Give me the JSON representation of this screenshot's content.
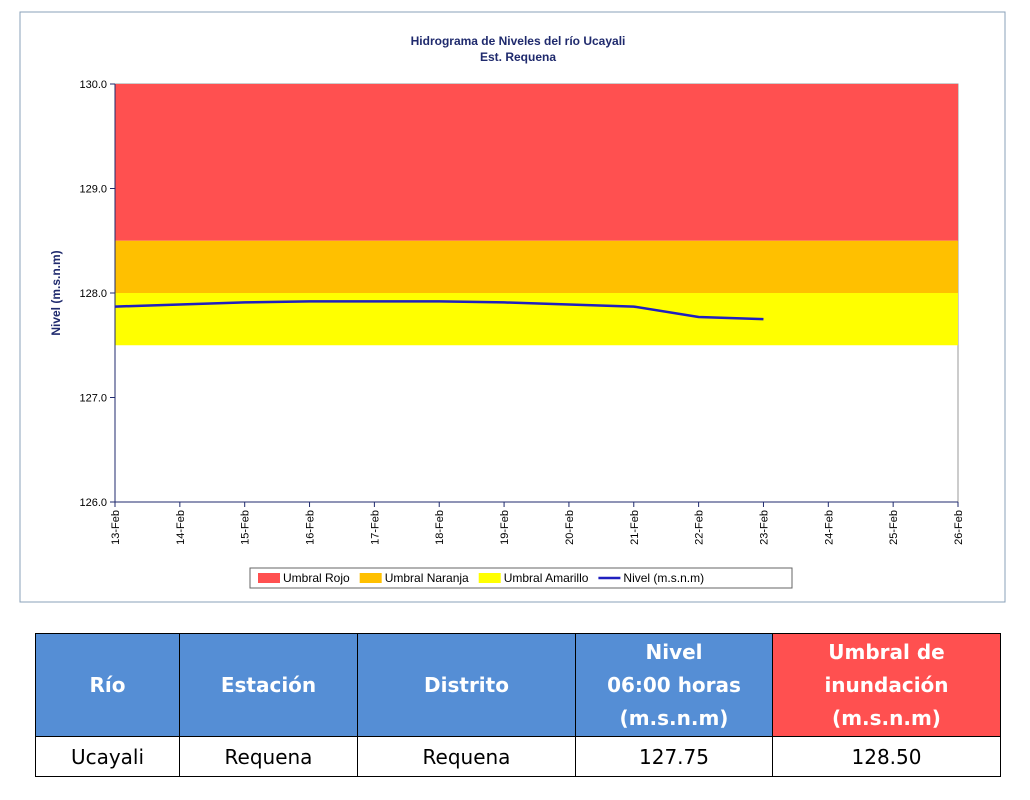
{
  "chart_data": {
    "type": "line",
    "title": "Hidrograma de Niveles del río Ucayali",
    "subtitle": "Est. Requena",
    "y_label": "Nivel (m.s.n.m)",
    "categories": [
      "13-Feb",
      "14-Feb",
      "15-Feb",
      "16-Feb",
      "17-Feb",
      "18-Feb",
      "19-Feb",
      "20-Feb",
      "21-Feb",
      "22-Feb",
      "23-Feb",
      "24-Feb",
      "25-Feb",
      "26-Feb"
    ],
    "ylim": [
      126,
      130
    ],
    "yticks": [
      {
        "value": 126,
        "label": "126.0"
      },
      {
        "value": 127,
        "label": "127.0"
      },
      {
        "value": 128,
        "label": "128.0"
      },
      {
        "value": 129,
        "label": "129.0"
      },
      {
        "value": 130,
        "label": "130.0"
      }
    ],
    "bands": [
      {
        "name": "Umbral Rojo",
        "color": "#ff5050",
        "lower": 128.5,
        "upper": 130
      },
      {
        "name": "Umbral Naranja",
        "color": "#ffc000",
        "lower": 128,
        "upper": 128.5
      },
      {
        "name": "Umbral Amarillo",
        "color": "#ffff00",
        "lower": 127.5,
        "upper": 128
      }
    ],
    "series": [
      {
        "name": "Nivel (m.s.n.m)",
        "color": "#1f1fbf",
        "values": [
          127.87,
          127.89,
          127.91,
          127.92,
          127.92,
          127.92,
          127.91,
          127.89,
          127.87,
          127.77,
          127.75,
          null,
          null,
          null
        ]
      }
    ]
  },
  "table": {
    "header": [
      [
        "Río"
      ],
      [
        "Estación"
      ],
      [
        "Distrito"
      ],
      [
        "Nivel",
        "06:00 horas",
        "(m.s.n.m)"
      ],
      [
        "Umbral de",
        "inundación",
        "(m.s.n.m)"
      ]
    ],
    "rows": [
      [
        "Ucayali",
        "Requena",
        "Requena",
        "127.75",
        "128.50"
      ]
    ]
  }
}
